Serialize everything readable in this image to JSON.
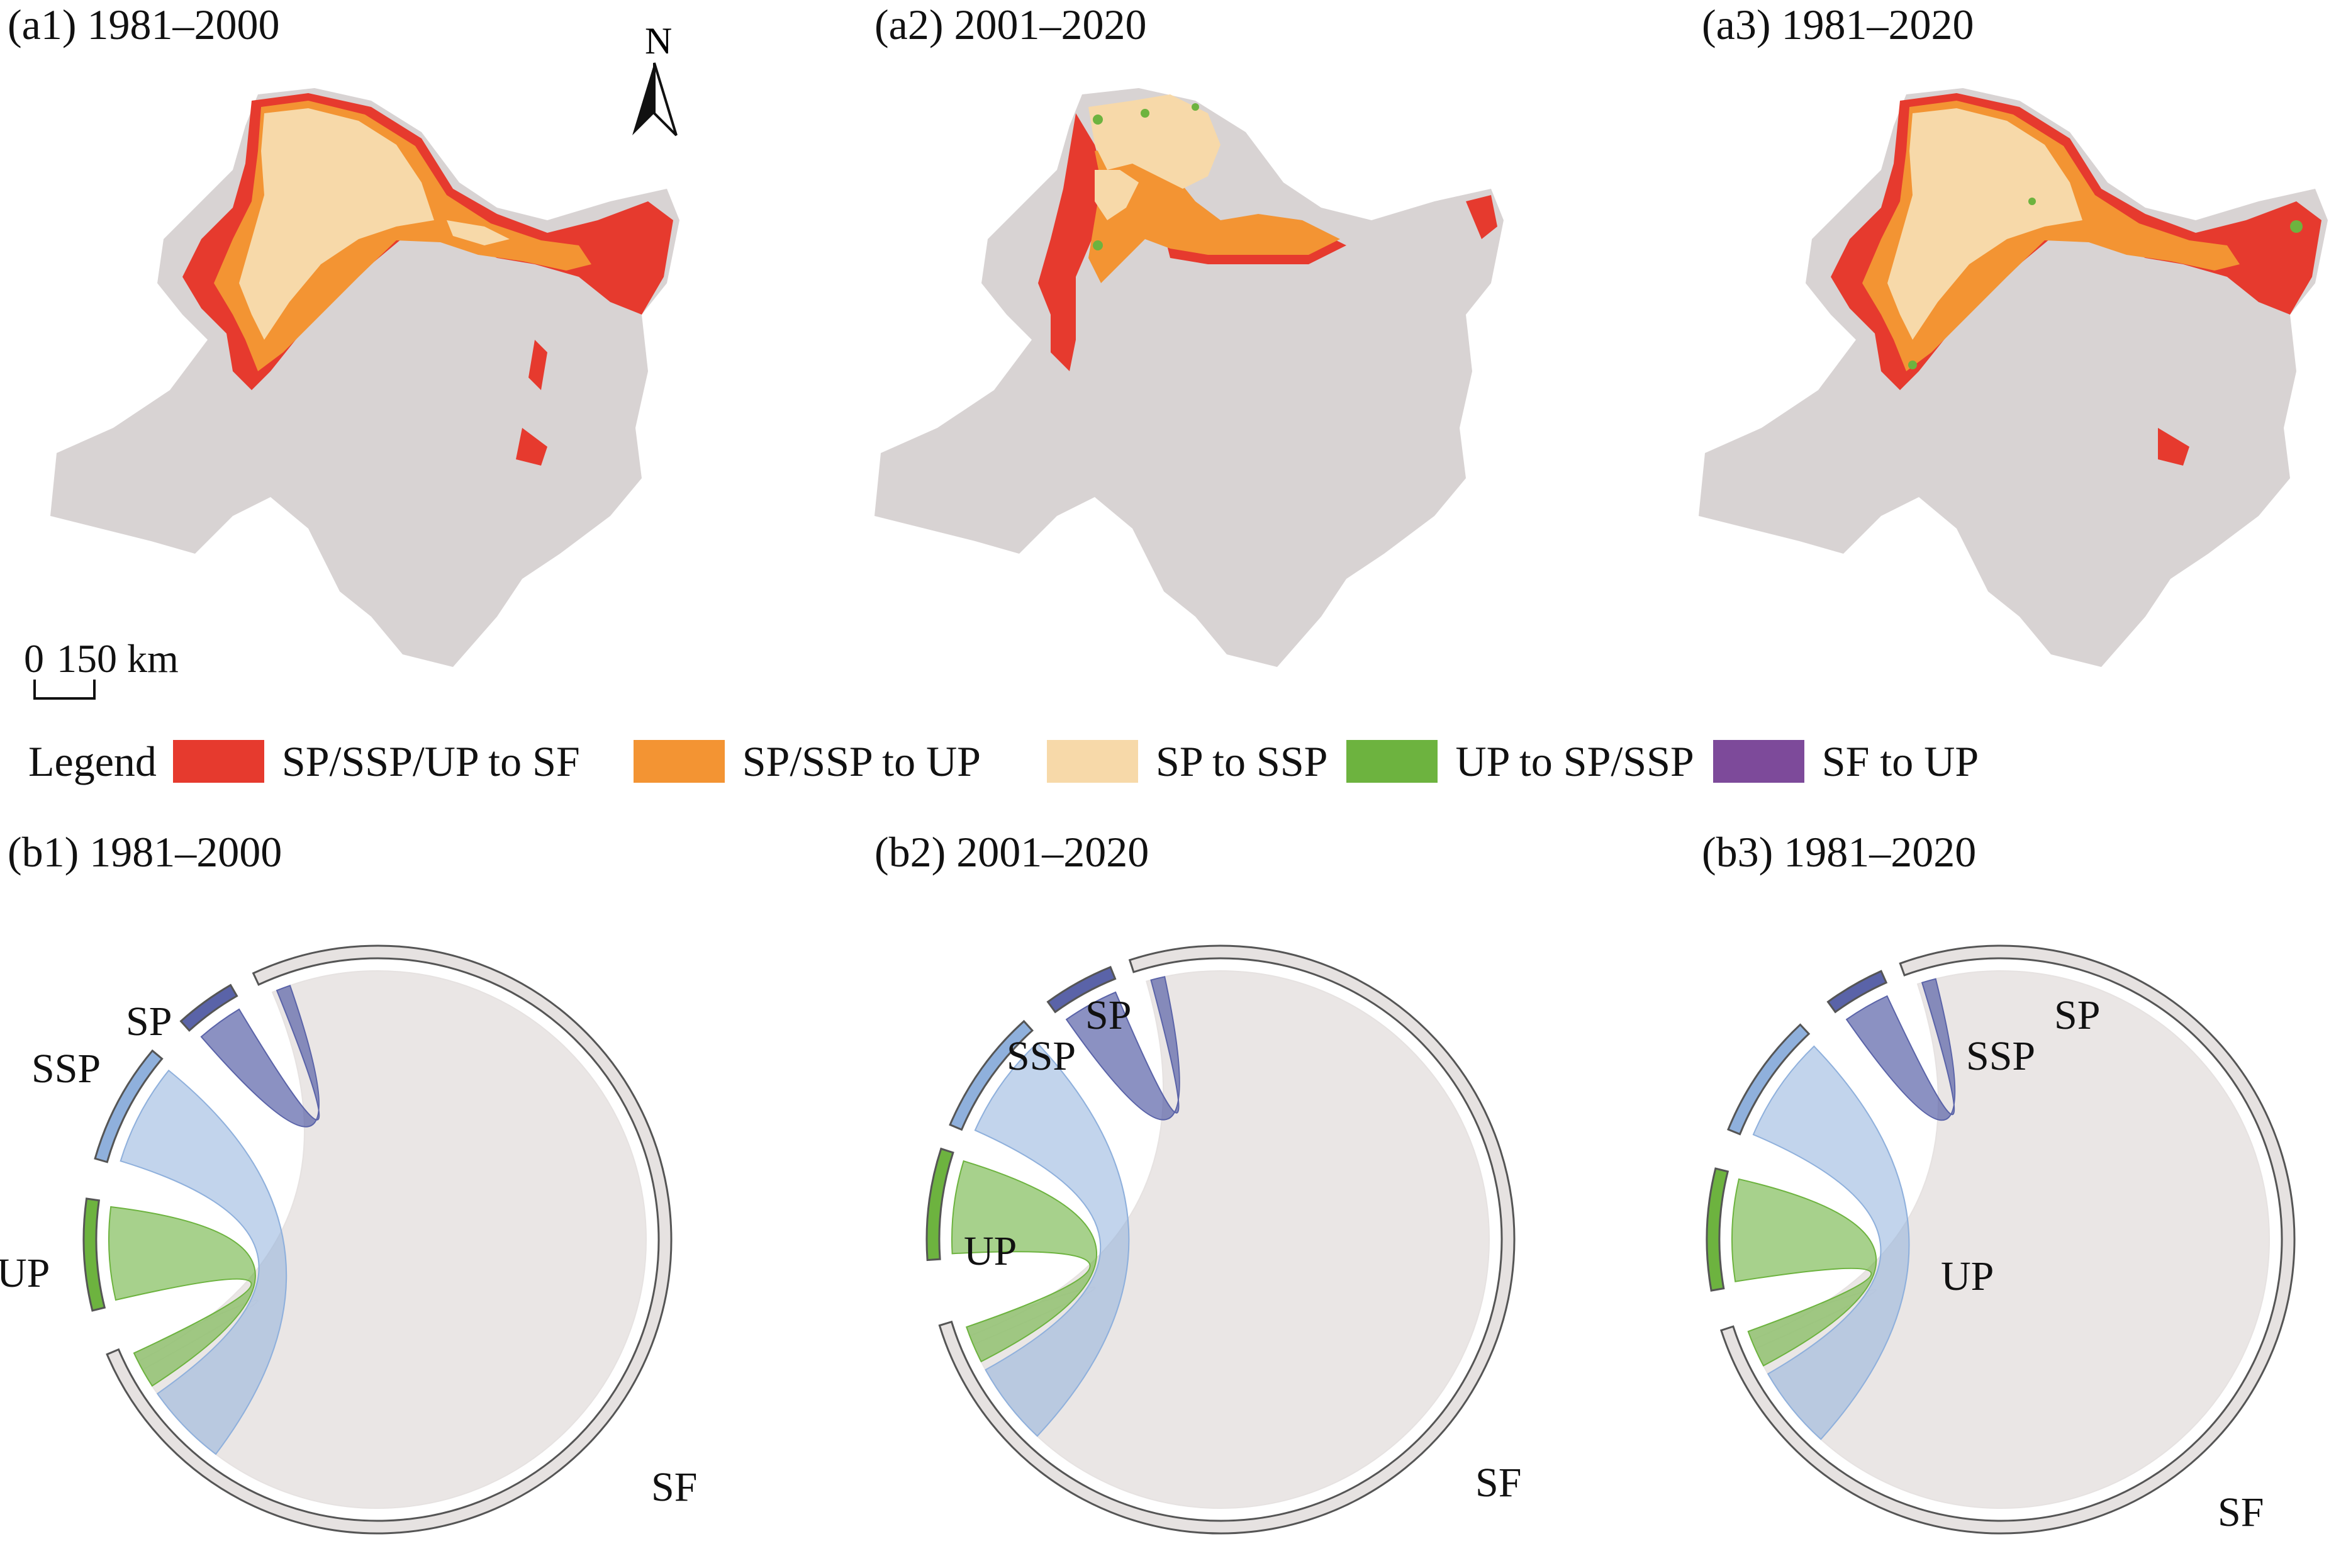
{
  "maps": [
    {
      "title": "(a1) 1981–2000"
    },
    {
      "title": "(a2) 2001–2020"
    },
    {
      "title": "(a3) 1981–2020"
    }
  ],
  "north_label": "N",
  "scale": {
    "zero": "0",
    "value": "150 km"
  },
  "legend": {
    "title": "Legend",
    "items": [
      {
        "label": "SP/SSP/UP to SF",
        "color": "#e63a2e"
      },
      {
        "label": "SP/SSP to UP",
        "color": "#f39433"
      },
      {
        "label": "SP to SSP",
        "color": "#f7d9a9"
      },
      {
        "label": "UP to SP/SSP",
        "color": "#6db33f"
      },
      {
        "label": "SF to UP",
        "color": "#7d4a9a"
      }
    ]
  },
  "chords": [
    {
      "title": "(b1) 1981–2000"
    },
    {
      "title": "(b2) 2001–2020"
    },
    {
      "title": "(b3) 1981–2020"
    }
  ],
  "chord_categories": [
    {
      "label": "SP",
      "color": "#5a63a8"
    },
    {
      "label": "SSP",
      "color": "#8fb0dc"
    },
    {
      "label": "UP",
      "color": "#6db33f"
    },
    {
      "label": "SF",
      "color": "#e6e2e1"
    }
  ]
}
